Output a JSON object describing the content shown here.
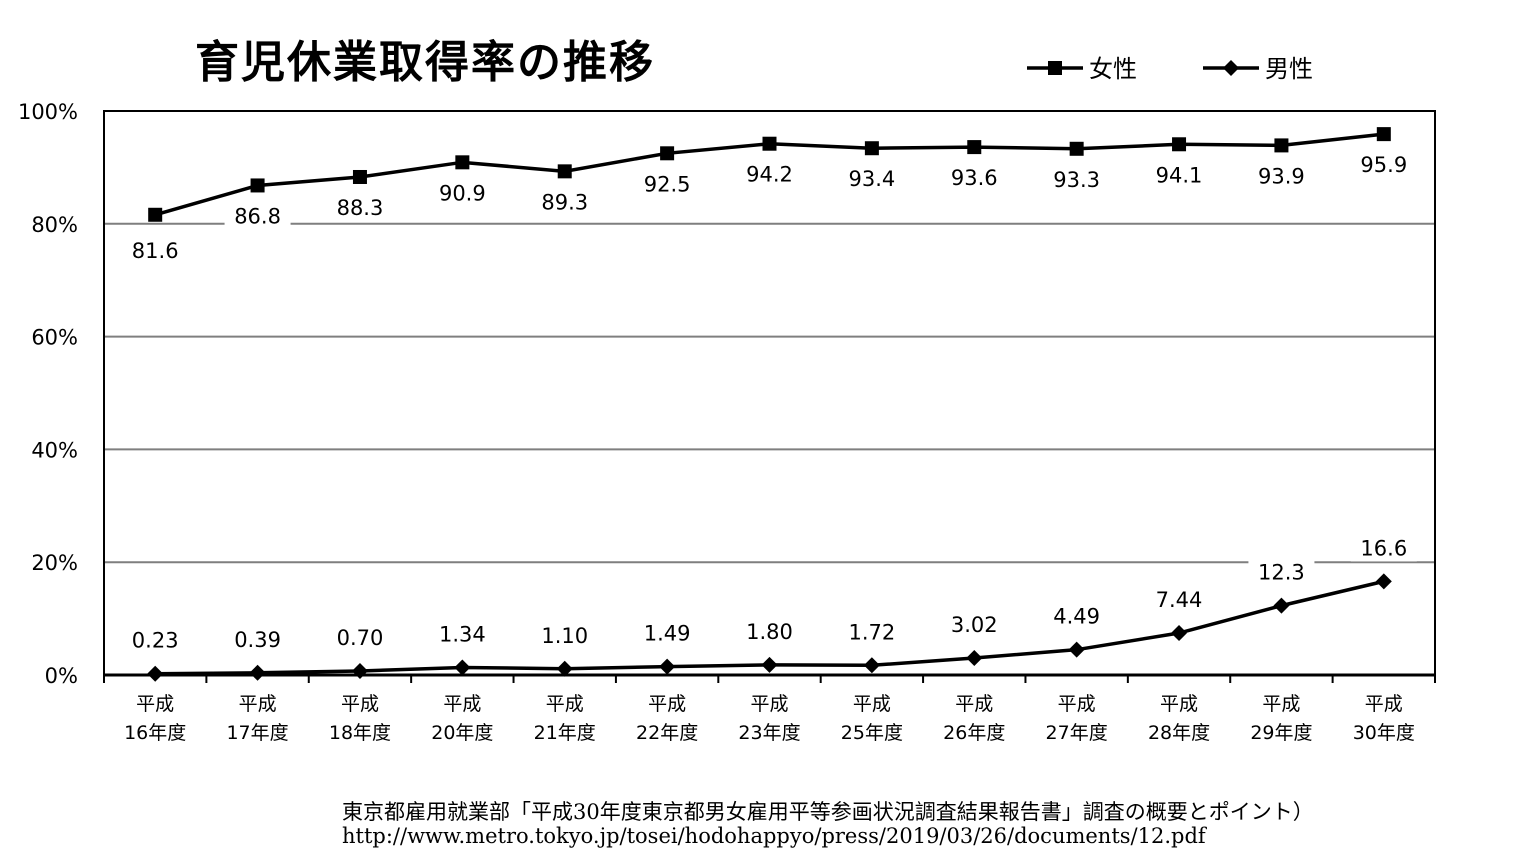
{
  "title": "育児休業取得率の推移",
  "source": {
    "line1": "東京都雇用就業部「平成30年度東京都男女雇用平等参画状況調査結果報告書」調査の概要とポイント）",
    "line2": "http://www.metro.tokyo.jp/tosei/hodohappyo/press/2019/03/26/documents/12.pdf"
  },
  "chart_data": {
    "type": "line",
    "title": "育児休業取得率の推移",
    "categories": [
      [
        "平成",
        "16年度"
      ],
      [
        "平成",
        "17年度"
      ],
      [
        "平成",
        "18年度"
      ],
      [
        "平成",
        "20年度"
      ],
      [
        "平成",
        "21年度"
      ],
      [
        "平成",
        "22年度"
      ],
      [
        "平成",
        "23年度"
      ],
      [
        "平成",
        "25年度"
      ],
      [
        "平成",
        "26年度"
      ],
      [
        "平成",
        "27年度"
      ],
      [
        "平成",
        "28年度"
      ],
      [
        "平成",
        "29年度"
      ],
      [
        "平成",
        "30年度"
      ]
    ],
    "y_ticks": [
      "100%",
      "80%",
      "60%",
      "40%",
      "20%",
      "0%"
    ],
    "ylim": [
      0,
      100
    ],
    "grid": true,
    "legend_position": "top-right",
    "series": [
      {
        "name": "女性",
        "marker": "square",
        "values": [
          81.6,
          86.8,
          88.3,
          90.9,
          89.3,
          92.5,
          94.2,
          93.4,
          93.6,
          93.3,
          94.1,
          93.9,
          95.9
        ],
        "labels": [
          "81.6",
          "86.8",
          "88.3",
          "90.9",
          "89.3",
          "92.5",
          "94.2",
          "93.4",
          "93.6",
          "93.3",
          "94.1",
          "93.9",
          "95.9"
        ]
      },
      {
        "name": "男性",
        "marker": "diamond",
        "values": [
          0.23,
          0.39,
          0.7,
          1.34,
          1.1,
          1.49,
          1.8,
          1.72,
          3.02,
          4.49,
          7.44,
          12.3,
          16.6
        ],
        "labels": [
          "0.23",
          "0.39",
          "0.70",
          "1.34",
          "1.10",
          "1.49",
          "1.80",
          "1.72",
          "3.02",
          "4.49",
          "7.44",
          "12.3",
          "16.6"
        ]
      }
    ],
    "colors": {
      "line": "#000000",
      "grid": "#7f7f7f",
      "axis": "#000000"
    }
  }
}
